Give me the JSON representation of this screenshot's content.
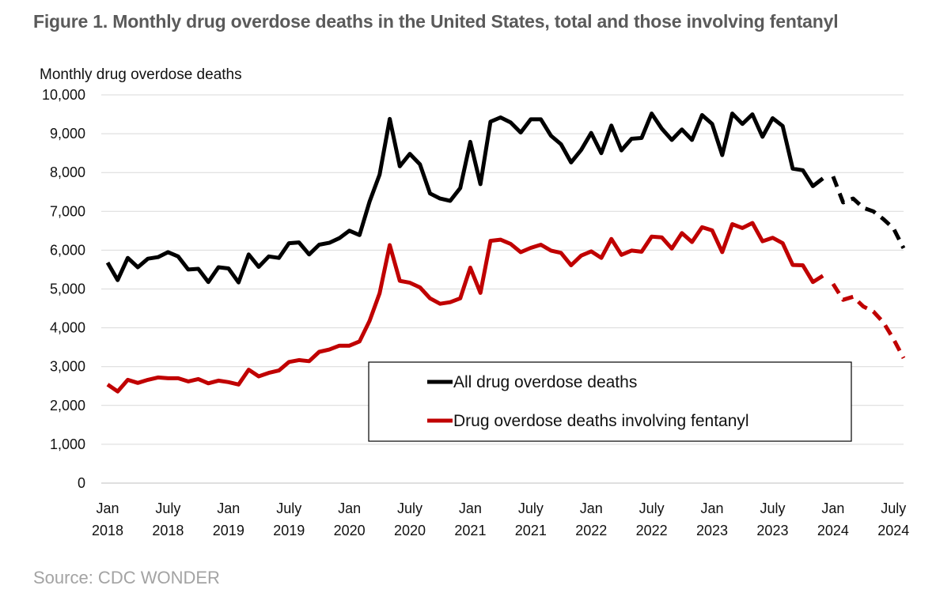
{
  "figure_title": "Figure 1. Monthly drug overdose deaths in the United States, total and those involving fentanyl",
  "source": "Source: CDC WONDER",
  "colors": {
    "all": "#000000",
    "fentanyl": "#c00000",
    "grid": "#d9d9d9"
  },
  "chart_data": {
    "type": "line",
    "title": "Figure 1. Monthly drug overdose deaths in the United States, total and those involving fentanyl",
    "ylabel": "Monthly drug overdose deaths",
    "xlabel": "",
    "ylim": [
      0,
      10000
    ],
    "yticks": [
      "0",
      "1,000",
      "2,000",
      "3,000",
      "4,000",
      "5,000",
      "6,000",
      "7,000",
      "8,000",
      "9,000",
      "10,000"
    ],
    "x_start": "Jan 2018",
    "x_end": "Aug 2024",
    "xticks": [
      {
        "month_index": 0,
        "line1": "Jan",
        "line2": "2018"
      },
      {
        "month_index": 6,
        "line1": "July",
        "line2": "2018"
      },
      {
        "month_index": 12,
        "line1": "Jan",
        "line2": "2019"
      },
      {
        "month_index": 18,
        "line1": "July",
        "line2": "2019"
      },
      {
        "month_index": 24,
        "line1": "Jan",
        "line2": "2020"
      },
      {
        "month_index": 30,
        "line1": "July",
        "line2": "2020"
      },
      {
        "month_index": 36,
        "line1": "Jan",
        "line2": "2021"
      },
      {
        "month_index": 42,
        "line1": "July",
        "line2": "2021"
      },
      {
        "month_index": 48,
        "line1": "Jan",
        "line2": "2022"
      },
      {
        "month_index": 54,
        "line1": "July",
        "line2": "2022"
      },
      {
        "month_index": 60,
        "line1": "Jan",
        "line2": "2023"
      },
      {
        "month_index": 66,
        "line1": "July",
        "line2": "2023"
      },
      {
        "month_index": 72,
        "line1": "Jan",
        "line2": "2024"
      },
      {
        "month_index": 78,
        "line1": "July",
        "line2": "2024"
      }
    ],
    "legend_position": "center-bottom",
    "series": [
      {
        "name": "All drug overdose deaths",
        "color": "#000000",
        "solid_end_index": 71,
        "dashed_start_index": 72,
        "values": [
          5680,
          5230,
          5800,
          5560,
          5780,
          5820,
          5950,
          5840,
          5500,
          5520,
          5180,
          5560,
          5530,
          5170,
          5890,
          5570,
          5840,
          5800,
          6180,
          6200,
          5890,
          6140,
          6190,
          6310,
          6500,
          6390,
          7250,
          7950,
          9380,
          8160,
          8480,
          8210,
          7460,
          7330,
          7270,
          7600,
          8790,
          7700,
          9310,
          9420,
          9290,
          9030,
          9370,
          9370,
          8950,
          8730,
          8260,
          8580,
          9020,
          8500,
          9210,
          8570,
          8870,
          8890,
          9520,
          9130,
          8840,
          9110,
          8840,
          9480,
          9250,
          8450,
          9520,
          9250,
          9500,
          8920,
          9400,
          9200,
          8100,
          8060,
          7650,
          7850,
          7900,
          7230,
          7330,
          7090,
          7000,
          6800,
          6560,
          6050
        ]
      },
      {
        "name": "Drug overdose deaths involving fentanyl",
        "color": "#c00000",
        "solid_end_index": 71,
        "dashed_start_index": 72,
        "values": [
          2540,
          2360,
          2660,
          2580,
          2660,
          2720,
          2700,
          2700,
          2620,
          2680,
          2570,
          2640,
          2600,
          2540,
          2920,
          2750,
          2840,
          2900,
          3120,
          3170,
          3140,
          3380,
          3440,
          3540,
          3540,
          3650,
          4180,
          4890,
          6130,
          5210,
          5160,
          5040,
          4760,
          4620,
          4660,
          4760,
          5550,
          4900,
          6240,
          6270,
          6160,
          5950,
          6060,
          6140,
          5990,
          5930,
          5610,
          5860,
          5970,
          5800,
          6290,
          5880,
          5990,
          5960,
          6350,
          6330,
          6040,
          6440,
          6210,
          6590,
          6510,
          5950,
          6670,
          6570,
          6700,
          6230,
          6320,
          6180,
          5620,
          5610,
          5180,
          5340,
          5130,
          4720,
          4800,
          4550,
          4420,
          4140,
          3710,
          3220
        ]
      }
    ]
  }
}
